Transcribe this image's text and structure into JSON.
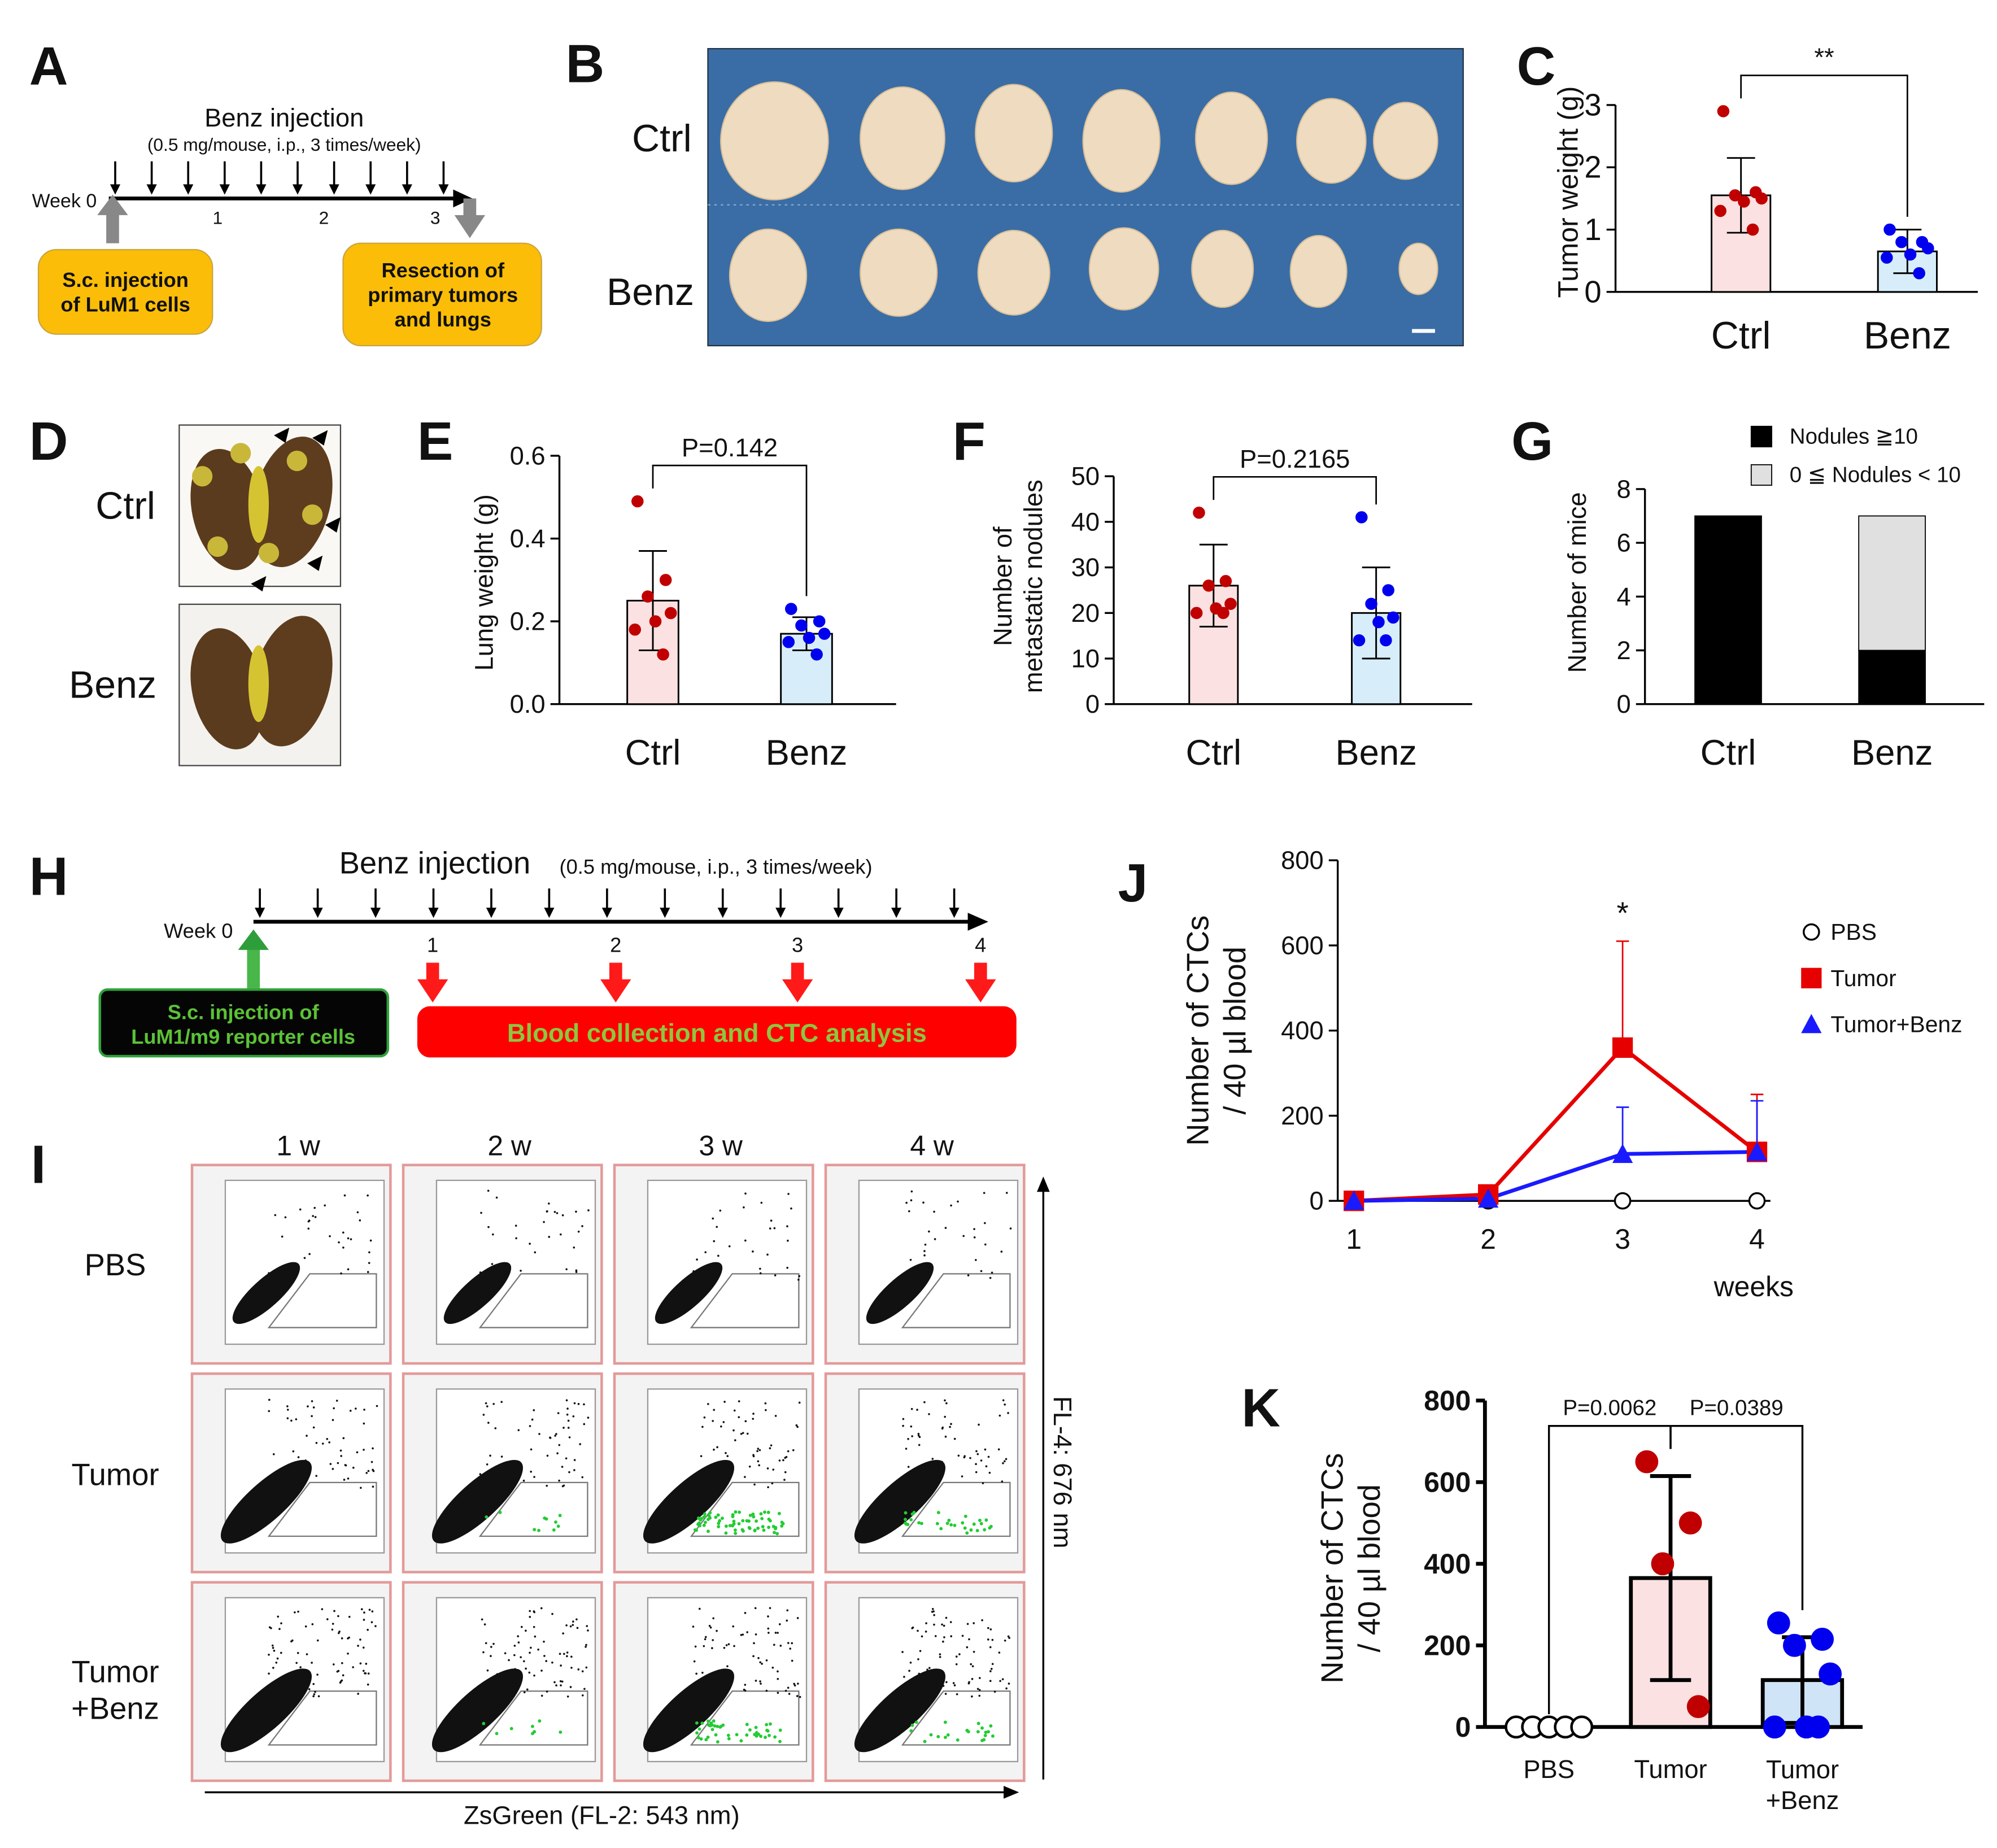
{
  "panel_letters": [
    "A",
    "B",
    "C",
    "D",
    "E",
    "F",
    "G",
    "H",
    "I",
    "J",
    "K"
  ],
  "timeline_a": {
    "title": "Benz injection",
    "subtitle": "(0.5 mg/mouse, i.p., 3 times/week)",
    "start": "Week 0",
    "weeks": [
      "1",
      "2",
      "3"
    ],
    "boxes": [
      "S.c. injection\nof LuM1 cells",
      "Resection of\nprimary tumors\nand lungs"
    ]
  },
  "photo_b": {
    "rows": [
      "Ctrl",
      "Benz"
    ]
  },
  "photo_d": {
    "rows": [
      "Ctrl",
      "Benz"
    ]
  },
  "timeline_h": {
    "title": "Benz injection",
    "subtitle": "(0.5 mg/mouse, i.p., 3 times/week)",
    "start": "Week 0",
    "weeks": [
      "1",
      "2",
      "3",
      "4"
    ],
    "boxes": [
      "S.c. injection of\nLuM1/m9 reporter cells",
      "Blood collection and CTC analysis"
    ]
  },
  "flow_i": {
    "columns": [
      "1 w",
      "2 w",
      "3 w",
      "4 w"
    ],
    "rows": [
      "PBS",
      "Tumor",
      "Tumor\n+Benz"
    ],
    "x_label": "ZsGreen (FL-2: 543 nm)",
    "y_label": "FL-4: 676 nm"
  },
  "chart_data": [
    {
      "type": "bar",
      "ylabel": "Tumor weight (g)",
      "categories": [
        "Ctrl",
        "Benz"
      ],
      "values": [
        1.55,
        0.65
      ],
      "errors": [
        0.6,
        0.35
      ],
      "points": [
        [
          2.9,
          1.6,
          1.55,
          1.5,
          1.45,
          1.3,
          1.0
        ],
        [
          1.0,
          0.8,
          0.8,
          0.7,
          0.6,
          0.55,
          0.3
        ]
      ],
      "bar_colors": [
        "#fbe1e1",
        "#d7eefa"
      ],
      "point_colors": [
        "#c00000",
        "#0000ee"
      ],
      "ylim": [
        0,
        3
      ],
      "yticks": [
        0,
        1,
        2,
        3
      ],
      "comparisons": [
        {
          "label": "**",
          "between": [
            "Ctrl",
            "Benz"
          ]
        }
      ]
    },
    {
      "type": "bar",
      "ylabel": "Lung weight (g)",
      "categories": [
        "Ctrl",
        "Benz"
      ],
      "values": [
        0.25,
        0.17
      ],
      "errors": [
        0.12,
        0.04
      ],
      "points": [
        [
          0.49,
          0.3,
          0.26,
          0.22,
          0.2,
          0.18,
          0.12
        ],
        [
          0.23,
          0.2,
          0.19,
          0.17,
          0.16,
          0.15,
          0.12
        ]
      ],
      "bar_colors": [
        "#fbe1e1",
        "#d7eefa"
      ],
      "point_colors": [
        "#c00000",
        "#0000ee"
      ],
      "ylim": [
        0,
        0.6
      ],
      "yticks": [
        {
          "value": 0,
          "label": "0.0"
        },
        0.2,
        0.4,
        0.6
      ],
      "comparisons": [
        {
          "label": "P=0.142",
          "between": [
            "Ctrl",
            "Benz"
          ]
        }
      ]
    },
    {
      "type": "bar",
      "ylabel": "Number of\nmetastatic nodules",
      "categories": [
        "Ctrl",
        "Benz"
      ],
      "values": [
        26,
        20
      ],
      "errors": [
        9,
        10
      ],
      "points": [
        [
          42,
          27,
          26,
          22,
          21,
          20,
          20
        ],
        [
          41,
          25,
          22,
          19,
          18,
          14,
          14
        ]
      ],
      "bar_colors": [
        "#fbe1e1",
        "#d7eefa"
      ],
      "point_colors": [
        "#c00000",
        "#0000ee"
      ],
      "ylim": [
        0,
        50
      ],
      "yticks": [
        0,
        10,
        20,
        30,
        40,
        50
      ],
      "comparisons": [
        {
          "label": "P=0.2165",
          "between": [
            "Ctrl",
            "Benz"
          ]
        }
      ]
    },
    {
      "type": "stacked_bar",
      "ylabel": "Number of mice",
      "categories": [
        "Ctrl",
        "Benz"
      ],
      "series": [
        {
          "name": "Nodules ≧10",
          "color": "#000000",
          "values": [
            7,
            2
          ]
        },
        {
          "name": "0 ≦ Nodules < 10",
          "color": "#e0e0e0",
          "values": [
            0,
            5
          ]
        }
      ],
      "ylim": [
        0,
        8
      ],
      "yticks": [
        0,
        2,
        4,
        6,
        8
      ]
    },
    {
      "type": "line",
      "ylabel": "Number of CTCs\n/ 40 µl blood",
      "xlabel": "weeks",
      "x": [
        1,
        2,
        3,
        4
      ],
      "xlim": [
        0.88,
        4.1
      ],
      "xticks": [
        1,
        2,
        3,
        4
      ],
      "ylim": [
        0,
        800
      ],
      "yticks": [
        0,
        200,
        400,
        600,
        800
      ],
      "series": [
        {
          "name": "PBS",
          "color": "#000000",
          "marker": "circle",
          "values": [
            0,
            0,
            0,
            0
          ],
          "errors": [
            0,
            0,
            12,
            12
          ]
        },
        {
          "name": "Tumor",
          "color": "#e60000",
          "marker": "square",
          "values": [
            0,
            15,
            360,
            115
          ],
          "errors": [
            0,
            8,
            250,
            135
          ]
        },
        {
          "name": "Tumor+Benz",
          "color": "#1a1aff",
          "marker": "triangle",
          "values": [
            0,
            5,
            110,
            115
          ],
          "errors": [
            0,
            5,
            110,
            120
          ]
        }
      ],
      "annotations": [
        {
          "text": "*",
          "x": 3
        }
      ]
    },
    {
      "type": "bar",
      "ylabel": "Number of CTCs\n/ 40 µl blood",
      "categories": [
        "PBS",
        "Tumor",
        "Tumor\n+Benz"
      ],
      "values": [
        0,
        365,
        115
      ],
      "errors": [
        0,
        250,
        105
      ],
      "points": [
        [
          0,
          0,
          0,
          0,
          0
        ],
        [
          650,
          500,
          400,
          50
        ],
        [
          255,
          215,
          200,
          130,
          0,
          0,
          0
        ]
      ],
      "bar_colors": [
        "#ffffff",
        "#fbe1e1",
        "#cfe4f6"
      ],
      "point_colors": [
        "#000000",
        "#c00000",
        "#0000ee"
      ],
      "point_fills": [
        "#ffffff",
        "#c00000",
        "#0000ee"
      ],
      "ylim": [
        0,
        800
      ],
      "yticks": [
        0,
        200,
        400,
        600,
        800
      ],
      "comparisons": [
        {
          "label": "P=0.0062",
          "between": [
            "PBS",
            "Tumor"
          ]
        },
        {
          "label": "P=0.0389",
          "between": [
            "Tumor",
            "Tumor\n+Benz"
          ]
        }
      ]
    }
  ]
}
